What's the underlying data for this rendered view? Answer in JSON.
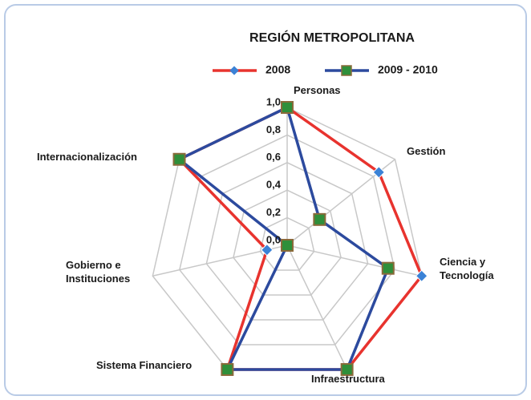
{
  "chart_data": {
    "type": "radar",
    "title": "REGIÓN METROPOLITANA",
    "categories": [
      "Personas",
      "Gestión",
      "Ciencia y Tecnología",
      "Infraestructura",
      "Sistema Financiero",
      "Gobierno e Instituciones",
      "Internacionalización"
    ],
    "series": [
      {
        "name": "2008",
        "color": "#e8332e",
        "marker_color": "#3b82d6",
        "marker": "diamond",
        "values": [
          1.0,
          0.85,
          1.0,
          1.0,
          1.0,
          0.15,
          1.0
        ]
      },
      {
        "name": "2009 - 2010",
        "color": "#2c4a9e",
        "marker_color": "#2f8f3a",
        "marker": "square",
        "values": [
          1.0,
          0.3,
          0.75,
          1.0,
          1.0,
          0.0,
          1.0
        ]
      }
    ],
    "ylim": [
      0,
      1
    ],
    "yticks": [
      {
        "value": 0,
        "label": "0,0"
      },
      {
        "value": 0.2,
        "label": "0,2"
      },
      {
        "value": 0.4,
        "label": "0,4"
      },
      {
        "value": 0.6,
        "label": "0,6"
      },
      {
        "value": 0.8,
        "label": "0,8"
      },
      {
        "value": 1,
        "label": "1,0"
      }
    ],
    "grid": true
  }
}
